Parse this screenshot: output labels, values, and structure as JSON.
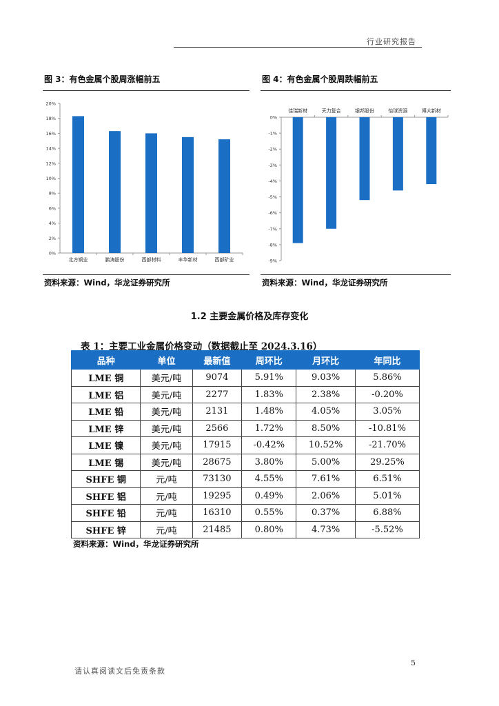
{
  "header": {
    "label": "行业研究报告"
  },
  "figure3": {
    "title": "图 3：有色金属个股周涨幅前五",
    "source": "资料来源：Wind，华龙证券研究所"
  },
  "figure4": {
    "title": "图 4：有色金属个股周跌幅前五",
    "source": "资料来源：Wind，华龙证券研究所"
  },
  "chart_data": [
    {
      "type": "bar",
      "categories": [
        "北方铜业",
        "鹏涛股份",
        "西部材料",
        "丰华新材",
        "西部矿业"
      ],
      "values": [
        18.3,
        16.3,
        16.0,
        15.5,
        15.2
      ],
      "unit": "%",
      "ylim": [
        0,
        20
      ],
      "yticks": [
        "0%",
        "2%",
        "4%",
        "6%",
        "8%",
        "10%",
        "12%",
        "14%",
        "16%",
        "18%",
        "20%"
      ],
      "color": "#1a6fc4",
      "grid": false
    },
    {
      "type": "bar",
      "categories": [
        "佳瑞新材",
        "天力复合",
        "银邦股份",
        "怡球资源",
        "博大新材"
      ],
      "values": [
        -7.9,
        -7.0,
        -5.2,
        -4.6,
        -4.2
      ],
      "unit": "%",
      "ylim": [
        -9,
        0
      ],
      "yticks": [
        "0%",
        "-1%",
        "-2%",
        "-3%",
        "-4%",
        "-5%",
        "-6%",
        "-7%",
        "-8%",
        "-9%"
      ],
      "color": "#1a6fc4",
      "grid": false
    }
  ],
  "section": {
    "title": "1.2  主要金属价格及库存变化"
  },
  "table": {
    "title": "表 1：主要工业金属价格变动（数据截止至 2024.3.16）",
    "headers": [
      "品种",
      "单位",
      "最新值",
      "周环比",
      "月环比",
      "年同比"
    ],
    "rows": [
      [
        "LME 铜",
        "美元/吨",
        "9074",
        "5.91%",
        "9.03%",
        "5.86%"
      ],
      [
        "LME 铝",
        "美元/吨",
        "2277",
        "1.83%",
        "2.38%",
        "-0.20%"
      ],
      [
        "LME 铅",
        "美元/吨",
        "2131",
        "1.48%",
        "4.05%",
        "3.05%"
      ],
      [
        "LME 锌",
        "美元/吨",
        "2566",
        "1.72%",
        "8.50%",
        "-10.81%"
      ],
      [
        "LME 镍",
        "美元/吨",
        "17915",
        "-0.42%",
        "10.52%",
        "-21.70%"
      ],
      [
        "LME 锡",
        "美元/吨",
        "28675",
        "3.80%",
        "5.00%",
        "29.25%"
      ],
      [
        "SHFE 铜",
        "元/吨",
        "73130",
        "4.55%",
        "7.61%",
        "6.51%"
      ],
      [
        "SHFE 铝",
        "元/吨",
        "19295",
        "0.49%",
        "2.06%",
        "5.01%"
      ],
      [
        "SHFE 铅",
        "元/吨",
        "16310",
        "0.55%",
        "0.37%",
        "6.88%"
      ],
      [
        "SHFE 锌",
        "元/吨",
        "21485",
        "0.80%",
        "4.73%",
        "-5.52%"
      ]
    ],
    "source": "资料来源：Wind，华龙证券研究所"
  },
  "footer": {
    "page_number": "5",
    "disclaimer": "请认真阅读文后免责条款"
  }
}
